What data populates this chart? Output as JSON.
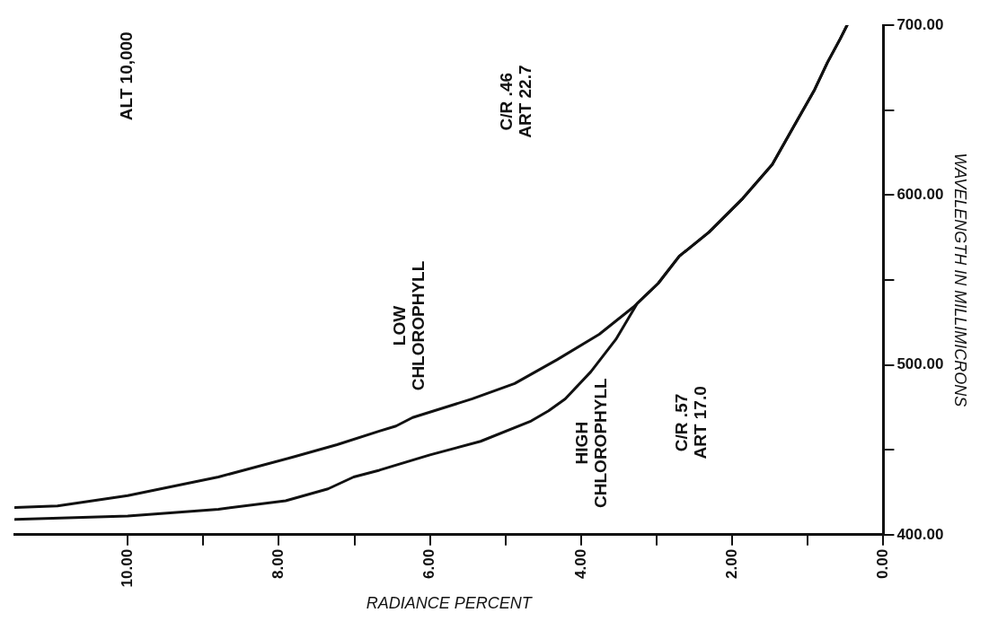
{
  "chart_data": {
    "type": "line",
    "xlabel": "RADIANCE PERCENT",
    "y2label": "WAVELENGTH IN MILLIMICRONS",
    "xlim": [
      11.5,
      0
    ],
    "xticks": [
      {
        "value": 0,
        "label": "0.00"
      },
      {
        "value": 1,
        "label": null
      },
      {
        "value": 2,
        "label": "2.00"
      },
      {
        "value": 3,
        "label": null
      },
      {
        "value": 4,
        "label": "4.00"
      },
      {
        "value": 5,
        "label": null
      },
      {
        "value": 6,
        "label": "6.00"
      },
      {
        "value": 7,
        "label": null
      },
      {
        "value": 8,
        "label": "8.00"
      },
      {
        "value": 9,
        "label": null
      },
      {
        "value": 10,
        "label": "10.00"
      }
    ],
    "y2lim": [
      400,
      700
    ],
    "y2ticks": [
      {
        "value": 400,
        "label": "400.00"
      },
      {
        "value": 450,
        "label": null
      },
      {
        "value": 500,
        "label": "500.00"
      },
      {
        "value": 550,
        "label": null
      },
      {
        "value": 600,
        "label": "600.00"
      },
      {
        "value": 650,
        "label": null
      },
      {
        "value": 700,
        "label": "700.00"
      }
    ],
    "grid": false,
    "legend": false,
    "marker": "none",
    "line_style": "solid",
    "series": [
      {
        "color": "#111111",
        "axis": "y2",
        "x": [
          11.49,
          10.93,
          10.0,
          8.8,
          7.79,
          7.23,
          6.67,
          6.45,
          6.23,
          5.44,
          4.88,
          4.32,
          3.76,
          3.31,
          2.98,
          2.7,
          2.31,
          1.86,
          1.47,
          1.19,
          0.91,
          0.74,
          0.57,
          0.48
        ],
        "values": [
          416,
          417,
          423,
          434,
          446,
          453,
          461,
          464,
          469,
          480,
          489,
          503,
          518,
          534,
          548,
          564,
          578,
          598,
          618,
          640,
          662,
          678,
          692,
          700
        ]
      },
      {
        "color": "#111111",
        "axis": "y2",
        "x": [
          11.49,
          10.0,
          8.8,
          7.91,
          7.35,
          7.01,
          6.67,
          6.0,
          5.33,
          4.66,
          4.43,
          4.21,
          3.87,
          3.54,
          3.26,
          2.98,
          2.7,
          2.31,
          1.86,
          1.47,
          1.19,
          0.91,
          0.74,
          0.57,
          0.48
        ],
        "values": [
          409,
          411,
          415,
          420,
          427,
          434,
          438,
          447,
          455,
          467,
          473,
          480,
          496,
          515,
          536,
          548,
          564,
          578,
          598,
          618,
          640,
          662,
          678,
          692,
          700
        ]
      }
    ],
    "annotations": [
      "LOW\nCHLOROPHYLL",
      "HIGH\nCHLOROPHYLL",
      "ALT 10,000",
      "C/R .46\nART 22.7",
      "C/R .57\nART 17.0"
    ]
  }
}
